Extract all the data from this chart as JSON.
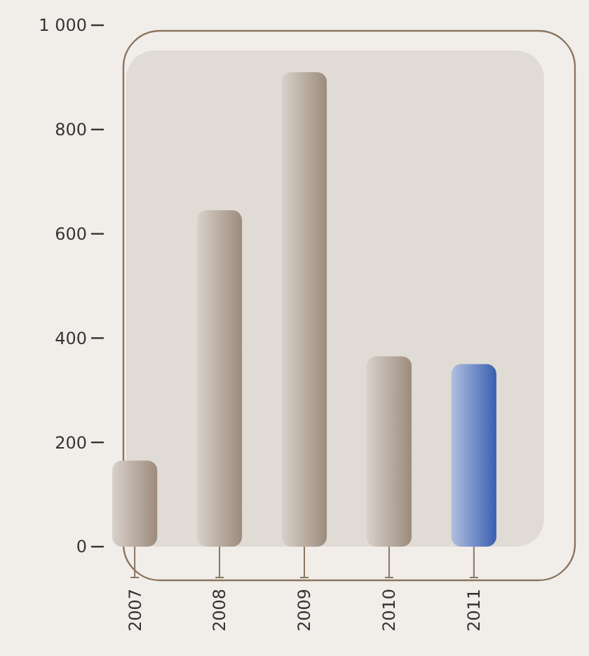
{
  "chart_data": {
    "type": "bar",
    "categories": [
      "2007",
      "2008",
      "2009",
      "2010",
      "2011"
    ],
    "values": [
      165,
      645,
      910,
      365,
      350
    ],
    "colors": [
      "#9c8b7c",
      "#9c8b7c",
      "#9c8b7c",
      "#9c8b7c",
      "#3a5fb0"
    ],
    "ylim": [
      0,
      1000
    ],
    "yticks": [
      0,
      200,
      400,
      600,
      800,
      {
        "value": 1000,
        "label": "1 000"
      }
    ],
    "grid": false
  }
}
